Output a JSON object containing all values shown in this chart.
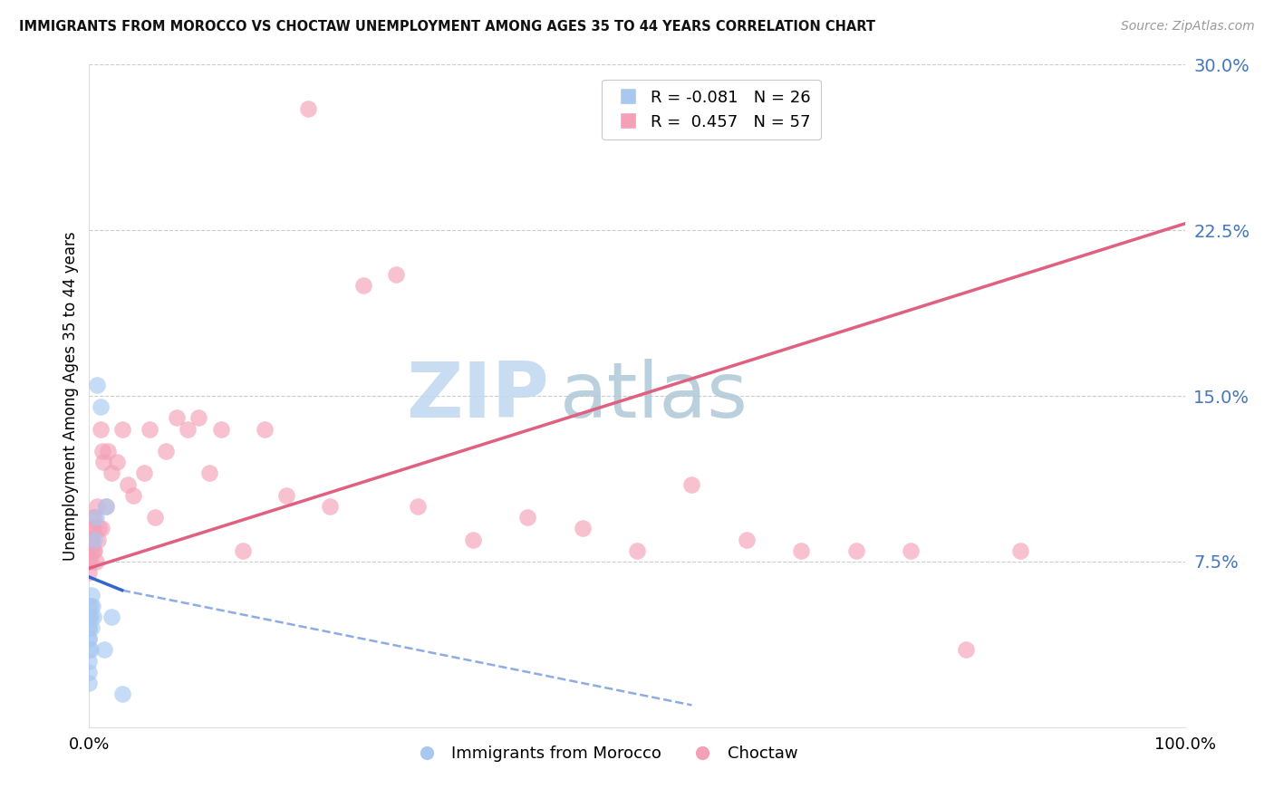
{
  "title": "IMMIGRANTS FROM MOROCCO VS CHOCTAW UNEMPLOYMENT AMONG AGES 35 TO 44 YEARS CORRELATION CHART",
  "source": "Source: ZipAtlas.com",
  "ylabel": "Unemployment Among Ages 35 to 44 years",
  "xlim": [
    0,
    100
  ],
  "ylim": [
    0,
    30
  ],
  "yticks": [
    0,
    7.5,
    15.0,
    22.5,
    30.0
  ],
  "morocco_color": "#a8c8f0",
  "choctaw_color": "#f4a0b8",
  "morocco_line_color": "#3366cc",
  "choctaw_line_color": "#e06080",
  "legend_morocco_r": "-0.081",
  "legend_morocco_n": "26",
  "legend_choctaw_r": "0.457",
  "legend_choctaw_n": "57",
  "watermark_top": "ZIP",
  "watermark_bottom": "atlas",
  "watermark_color_blue": "#c0d8f0",
  "watermark_color_gray": "#b0c8d8",
  "morocco_x": [
    0.0,
    0.0,
    0.0,
    0.0,
    0.0,
    0.0,
    0.0,
    0.0,
    0.0,
    0.0,
    0.0,
    0.1,
    0.1,
    0.1,
    0.2,
    0.2,
    0.3,
    0.4,
    0.5,
    0.6,
    0.7,
    1.0,
    1.4,
    1.5,
    2.0,
    3.0
  ],
  "morocco_y": [
    5.5,
    5.0,
    5.0,
    4.5,
    4.5,
    4.0,
    4.0,
    3.5,
    3.0,
    2.5,
    2.0,
    5.5,
    5.0,
    3.5,
    6.0,
    4.5,
    5.5,
    5.0,
    8.5,
    9.5,
    15.5,
    14.5,
    3.5,
    10.0,
    5.0,
    1.5
  ],
  "choctaw_x": [
    0.0,
    0.0,
    0.0,
    0.1,
    0.1,
    0.1,
    0.2,
    0.2,
    0.3,
    0.3,
    0.4,
    0.4,
    0.5,
    0.5,
    0.6,
    0.7,
    0.8,
    0.9,
    1.0,
    1.1,
    1.2,
    1.3,
    1.5,
    1.7,
    2.0,
    2.5,
    3.0,
    3.5,
    4.0,
    5.0,
    5.5,
    6.0,
    7.0,
    8.0,
    9.0,
    10.0,
    11.0,
    12.0,
    14.0,
    16.0,
    18.0,
    20.0,
    22.0,
    25.0,
    28.0,
    30.0,
    35.0,
    40.0,
    45.0,
    50.0,
    55.0,
    60.0,
    65.0,
    70.0,
    75.0,
    80.0,
    85.0
  ],
  "choctaw_y": [
    8.0,
    7.5,
    7.0,
    8.5,
    8.0,
    7.5,
    9.0,
    8.5,
    9.5,
    8.5,
    9.0,
    8.0,
    9.5,
    8.0,
    7.5,
    10.0,
    8.5,
    9.0,
    13.5,
    9.0,
    12.5,
    12.0,
    10.0,
    12.5,
    11.5,
    12.0,
    13.5,
    11.0,
    10.5,
    11.5,
    13.5,
    9.5,
    12.5,
    14.0,
    13.5,
    14.0,
    11.5,
    13.5,
    8.0,
    13.5,
    10.5,
    28.0,
    10.0,
    20.0,
    20.5,
    10.0,
    8.5,
    9.5,
    9.0,
    8.0,
    11.0,
    8.5,
    8.0,
    8.0,
    8.0,
    3.5,
    8.0
  ],
  "choctaw_line_x0": 0,
  "choctaw_line_y0": 7.2,
  "choctaw_line_x1": 100,
  "choctaw_line_y1": 22.8,
  "morocco_line_solid_x0": 0,
  "morocco_line_solid_y0": 6.8,
  "morocco_line_solid_x1": 3.0,
  "morocco_line_solid_y1": 6.2,
  "morocco_line_dash_x0": 3.0,
  "morocco_line_dash_y0": 6.2,
  "morocco_line_dash_x1": 55,
  "morocco_line_dash_y1": 1.0
}
